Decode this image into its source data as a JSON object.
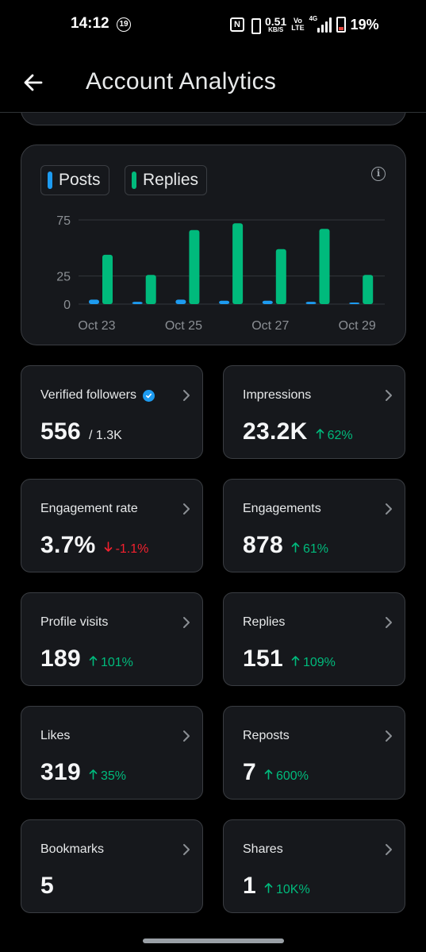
{
  "status_bar": {
    "time": "14:12",
    "notification_count": "19",
    "nfc_label": "N",
    "net_speed_value": "0.51",
    "net_speed_unit": "KB/S",
    "volte_top": "Vo",
    "volte_bottom": "LTE",
    "network_type": "4G",
    "battery_percent": "19%"
  },
  "header": {
    "title": "Account Analytics"
  },
  "chart_legend": {
    "posts_label": "Posts",
    "replies_label": "Replies",
    "info_glyph": "i"
  },
  "colors": {
    "posts": "#1d9bf0",
    "replies": "#00ba7c",
    "card_bg": "#16181c",
    "border": "#3a3d42",
    "up": "#00ba7c",
    "down": "#f4212e"
  },
  "chart_data": {
    "type": "bar",
    "categories": [
      "Oct 23",
      "Oct 24",
      "Oct 25",
      "Oct 26",
      "Oct 27",
      "Oct 28",
      "Oct 29"
    ],
    "x_tick_labels": [
      "Oct 23",
      "Oct 25",
      "Oct 27",
      "Oct 29"
    ],
    "series": [
      {
        "name": "Posts",
        "color": "#1d9bf0",
        "values": [
          4,
          2,
          4,
          3,
          3,
          2,
          1
        ]
      },
      {
        "name": "Replies",
        "color": "#00ba7c",
        "values": [
          44,
          26,
          66,
          72,
          49,
          67,
          26
        ]
      }
    ],
    "y_ticks": [
      0,
      25,
      75
    ],
    "ylim": [
      0,
      75
    ],
    "grid": true,
    "legend_position": "top-left"
  },
  "metrics": [
    {
      "label": "Verified followers",
      "verified": true,
      "value": "556",
      "total": "/ 1.3K",
      "change": "",
      "direction": ""
    },
    {
      "label": "Impressions",
      "value": "23.2K",
      "total": "",
      "change": "62%",
      "direction": "up"
    },
    {
      "label": "Engagement rate",
      "value": "3.7%",
      "total": "",
      "change": "-1.1%",
      "direction": "down"
    },
    {
      "label": "Engagements",
      "value": "878",
      "total": "",
      "change": "61%",
      "direction": "up"
    },
    {
      "label": "Profile visits",
      "value": "189",
      "total": "",
      "change": "101%",
      "direction": "up"
    },
    {
      "label": "Replies",
      "value": "151",
      "total": "",
      "change": "109%",
      "direction": "up"
    },
    {
      "label": "Likes",
      "value": "319",
      "total": "",
      "change": "35%",
      "direction": "up"
    },
    {
      "label": "Reposts",
      "value": "7",
      "total": "",
      "change": "600%",
      "direction": "up"
    },
    {
      "label": "Bookmarks",
      "value": "5",
      "total": "",
      "change": "",
      "direction": ""
    },
    {
      "label": "Shares",
      "value": "1",
      "total": "",
      "change": "10K%",
      "direction": "up"
    }
  ],
  "icons": {
    "back": "arrow-left-icon",
    "info": "info-icon",
    "chevron": "chevron-right-icon",
    "verified": "verified-badge-icon",
    "up": "arrow-up-icon",
    "down": "arrow-down-icon"
  }
}
